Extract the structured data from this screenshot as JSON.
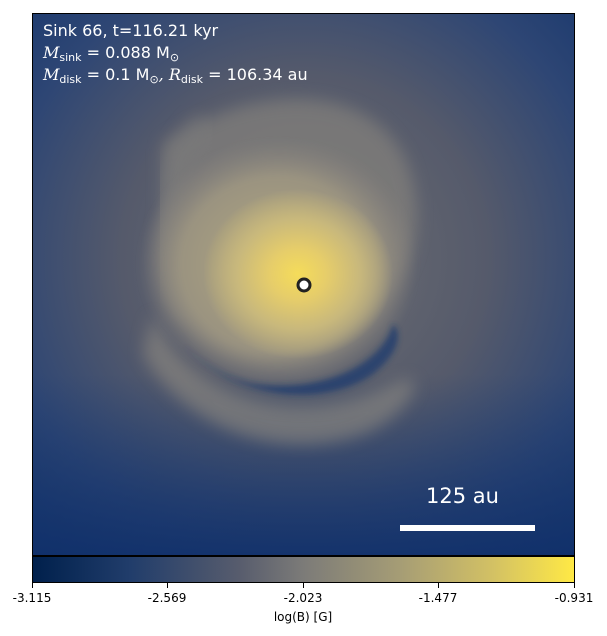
{
  "annotation": {
    "line1": "Sink 66, t=116.21 kyr",
    "m_sink_symbol": "M",
    "m_sink_sub": "sink",
    "m_sink_value": " = 0.088 M",
    "m_sink_unit_sub": "⊙",
    "m_disk_symbol": "M",
    "m_disk_sub": "disk",
    "m_disk_value": " = 0.1 M",
    "m_disk_unit_sub": "⊙",
    "r_disk_symbol": ", R",
    "r_disk_sub": "disk",
    "r_disk_value": " = 106.34 au"
  },
  "scale_bar": {
    "label": "125 au"
  },
  "colorbar": {
    "label": "log(B) [G]",
    "ticks": [
      "-3.115",
      "-2.569",
      "-2.023",
      "-1.477",
      "-0.931"
    ],
    "colormap": "cividis",
    "colors": [
      "#00204c",
      "#575c6d",
      "#7c7b78",
      "#a69d75",
      "#ffe945"
    ]
  },
  "sink_marker": {
    "icon": "sink-circle-icon"
  }
}
